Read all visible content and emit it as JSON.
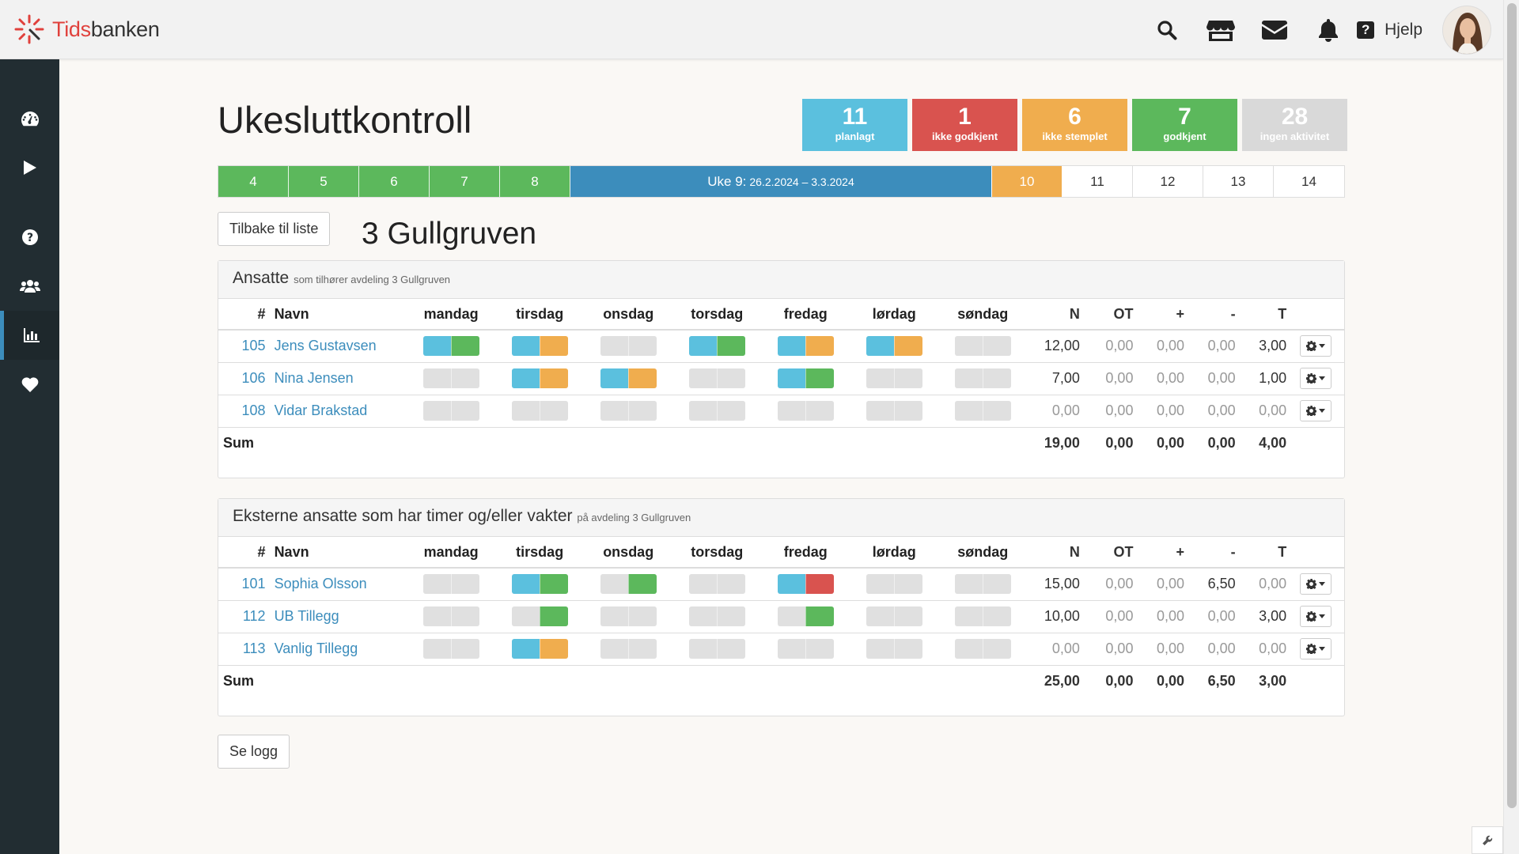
{
  "brand": {
    "part1": "Tids",
    "part2": "banken"
  },
  "topbar": {
    "help_label": "Hjelp"
  },
  "colors": {
    "blue": "#5bc0de",
    "green": "#5cb85c",
    "orange": "#f0ad4e",
    "red": "#d9534f",
    "gray": "#e0e0e0",
    "nav_blue": "#3c8dbc",
    "sidebar": "#222d32"
  },
  "sidebar": {
    "items": [
      {
        "icon": "dashboard-icon"
      },
      {
        "icon": "play-icon"
      },
      {
        "icon": "question-circle-icon"
      },
      {
        "icon": "users-icon"
      },
      {
        "icon": "bar-chart-icon",
        "active": true
      },
      {
        "icon": "heart-icon"
      }
    ]
  },
  "page": {
    "title": "Ukesluttkontroll"
  },
  "stats": [
    {
      "value": "11",
      "label": "planlagt",
      "color": "#5bc0de"
    },
    {
      "value": "1",
      "label": "ikke godkjent",
      "color": "#d9534f"
    },
    {
      "value": "6",
      "label": "ikke stemplet",
      "color": "#f0ad4e"
    },
    {
      "value": "7",
      "label": "godkjent",
      "color": "#5cb85c"
    },
    {
      "value": "28",
      "label": "ingen aktivitet",
      "color": "#d9d9d9"
    }
  ],
  "weeks": {
    "before": [
      "4",
      "5",
      "6",
      "7",
      "8"
    ],
    "current_label": "Uke 9:",
    "current_range": "26.2.2024 – 3.3.2024",
    "next_highlight": "10",
    "after": [
      "11",
      "12",
      "13",
      "14"
    ]
  },
  "back_button": "Tilbake til liste",
  "department": "3 Gullgruven",
  "columns": {
    "num": "#",
    "name": "Navn",
    "days": [
      "mandag",
      "tirsdag",
      "onsdag",
      "torsdag",
      "fredag",
      "lørdag",
      "søndag"
    ],
    "n": "N",
    "ot": "OT",
    "plus": "+",
    "minus": "-",
    "t": "T"
  },
  "panel1": {
    "title": "Ansatte",
    "subtitle": "som tilhører avdeling 3 Gullgruven",
    "rows": [
      {
        "num": "105",
        "name": "Jens Gustavsen",
        "days": [
          [
            "blue",
            "green"
          ],
          [
            "blue",
            "orange"
          ],
          [
            "gray",
            "gray"
          ],
          [
            "blue",
            "green"
          ],
          [
            "blue",
            "orange"
          ],
          [
            "blue",
            "orange"
          ],
          [
            "gray",
            "gray"
          ]
        ],
        "n": "12,00",
        "ot": "0,00",
        "plus": "0,00",
        "minus": "0,00",
        "t": "3,00"
      },
      {
        "num": "106",
        "name": "Nina Jensen",
        "days": [
          [
            "gray",
            "gray"
          ],
          [
            "blue",
            "orange"
          ],
          [
            "blue",
            "orange"
          ],
          [
            "gray",
            "gray"
          ],
          [
            "blue",
            "green"
          ],
          [
            "gray",
            "gray"
          ],
          [
            "gray",
            "gray"
          ]
        ],
        "n": "7,00",
        "ot": "0,00",
        "plus": "0,00",
        "minus": "0,00",
        "t": "1,00"
      },
      {
        "num": "108",
        "name": "Vidar Brakstad",
        "days": [
          [
            "gray",
            "gray"
          ],
          [
            "gray",
            "gray"
          ],
          [
            "gray",
            "gray"
          ],
          [
            "gray",
            "gray"
          ],
          [
            "gray",
            "gray"
          ],
          [
            "gray",
            "gray"
          ],
          [
            "gray",
            "gray"
          ]
        ],
        "n": "0,00",
        "ot": "0,00",
        "plus": "0,00",
        "minus": "0,00",
        "t": "0,00"
      }
    ],
    "sum": {
      "label": "Sum",
      "n": "19,00",
      "ot": "0,00",
      "plus": "0,00",
      "minus": "0,00",
      "t": "4,00"
    }
  },
  "panel2": {
    "title": "Eksterne ansatte som har timer og/eller vakter",
    "subtitle": "på avdeling 3 Gullgruven",
    "rows": [
      {
        "num": "101",
        "name": "Sophia Olsson",
        "days": [
          [
            "gray",
            "gray"
          ],
          [
            "blue",
            "green"
          ],
          [
            "gray",
            "green"
          ],
          [
            "gray",
            "gray"
          ],
          [
            "blue",
            "red"
          ],
          [
            "gray",
            "gray"
          ],
          [
            "gray",
            "gray"
          ]
        ],
        "n": "15,00",
        "ot": "0,00",
        "plus": "0,00",
        "minus": "6,50",
        "t": "0,00"
      },
      {
        "num": "112",
        "name": "UB Tillegg",
        "days": [
          [
            "gray",
            "gray"
          ],
          [
            "gray",
            "green"
          ],
          [
            "gray",
            "gray"
          ],
          [
            "gray",
            "gray"
          ],
          [
            "gray",
            "green"
          ],
          [
            "gray",
            "gray"
          ],
          [
            "gray",
            "gray"
          ]
        ],
        "n": "10,00",
        "ot": "0,00",
        "plus": "0,00",
        "minus": "0,00",
        "t": "3,00"
      },
      {
        "num": "113",
        "name": "Vanlig Tillegg",
        "days": [
          [
            "gray",
            "gray"
          ],
          [
            "blue",
            "orange"
          ],
          [
            "gray",
            "gray"
          ],
          [
            "gray",
            "gray"
          ],
          [
            "gray",
            "gray"
          ],
          [
            "gray",
            "gray"
          ],
          [
            "gray",
            "gray"
          ]
        ],
        "n": "0,00",
        "ot": "0,00",
        "plus": "0,00",
        "minus": "0,00",
        "t": "0,00"
      }
    ],
    "sum": {
      "label": "Sum",
      "n": "25,00",
      "ot": "0,00",
      "plus": "0,00",
      "minus": "6,50",
      "t": "3,00"
    }
  },
  "log_button": "Se logg"
}
